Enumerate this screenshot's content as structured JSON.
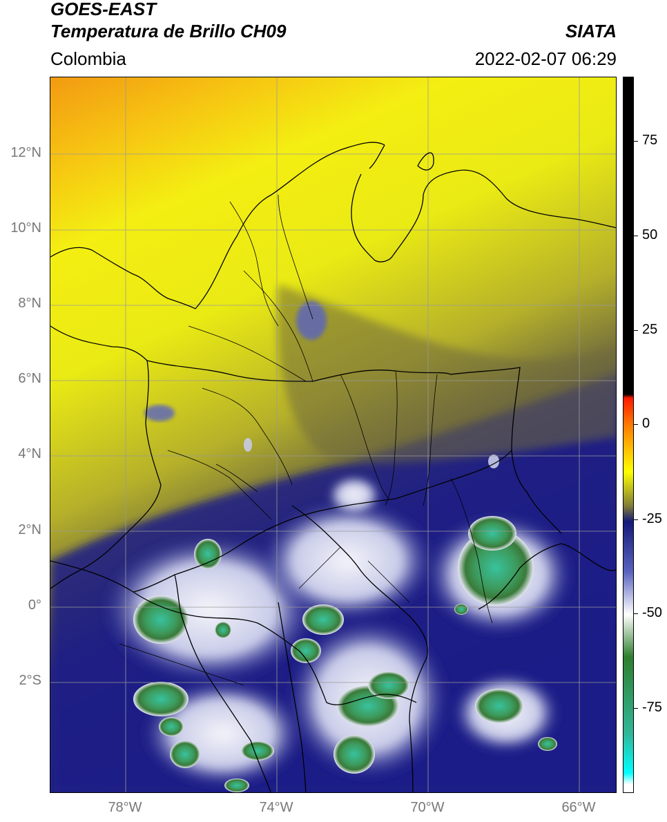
{
  "header": {
    "satellite": "GOES-EAST",
    "product": "Temperatura de Brillo CH09",
    "source": "SIATA",
    "region": "Colombia",
    "datetime": "2022-02-07 06:29"
  },
  "map": {
    "lat_labels": [
      "12°N",
      "10°N",
      "8°N",
      "6°N",
      "4°N",
      "2°N",
      "0°",
      "2°S"
    ],
    "lon_labels": [
      "78°W",
      "74°W",
      "70°W",
      "66°W"
    ],
    "extent": {
      "lon_min": -80,
      "lon_max": -65,
      "lat_min": -5,
      "lat_max": 14
    },
    "colors": {
      "warm_top": "#f29a12",
      "yellow": "#f4ee12",
      "olive": "#6f6a3e",
      "navy": "#1b1f87",
      "white_cloud": "#e6e8f4",
      "green_cloud": "#3d9a5c",
      "teal_core": "#38c29e",
      "borders": "#000000",
      "grid": "#9a9a9a"
    }
  },
  "colorbar": {
    "labels": [
      "75",
      "50",
      "25",
      "0",
      "-25",
      "-50",
      "-75"
    ],
    "range": [
      -95,
      90
    ],
    "stops": [
      {
        "value": 90,
        "color": "#000000"
      },
      {
        "value": 8,
        "color": "#000000"
      },
      {
        "value": 7,
        "color": "#ff1a00"
      },
      {
        "value": 0,
        "color": "#ff7a00"
      },
      {
        "value": -12,
        "color": "#ffff00"
      },
      {
        "value": -21,
        "color": "#7f7b38"
      },
      {
        "value": -25,
        "color": "#161a7a"
      },
      {
        "value": -38,
        "color": "#5a64c0"
      },
      {
        "value": -49,
        "color": "#ffffff"
      },
      {
        "value": -60,
        "color": "#2f7f2f"
      },
      {
        "value": -80,
        "color": "#30b89a"
      },
      {
        "value": -90,
        "color": "#00ffff"
      },
      {
        "value": -93,
        "color": "#ffffff"
      }
    ]
  }
}
